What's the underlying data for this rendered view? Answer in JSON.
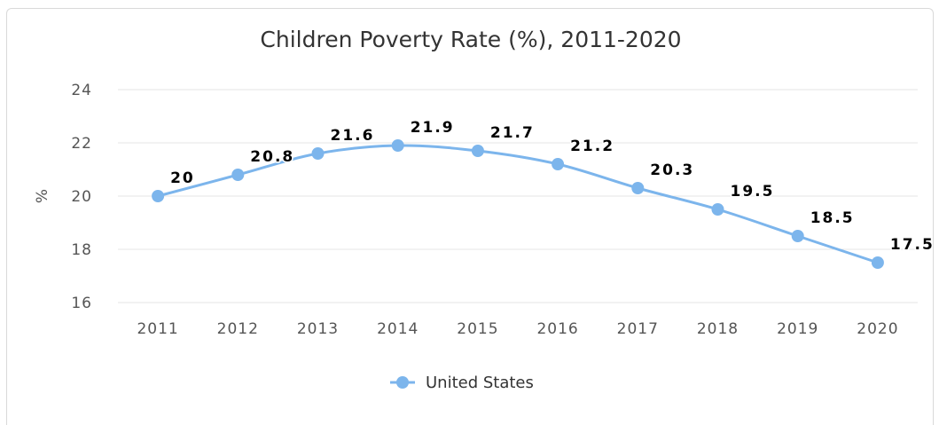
{
  "chart_data": {
    "type": "line",
    "title": "Children Poverty Rate (%), 2011-2020",
    "xlabel": "",
    "ylabel": "%",
    "categories": [
      "2011",
      "2012",
      "2013",
      "2014",
      "2015",
      "2016",
      "2017",
      "2018",
      "2019",
      "2020"
    ],
    "series": [
      {
        "name": "United States",
        "values": [
          20,
          20.8,
          21.6,
          21.9,
          21.7,
          21.2,
          20.3,
          19.5,
          18.5,
          17.5
        ],
        "labels": [
          "20",
          "20.8",
          "21.6",
          "21.9",
          "21.7",
          "21.2",
          "20.3",
          "19.5",
          "18.5",
          "17.5"
        ]
      }
    ],
    "ylim": [
      16,
      24
    ],
    "yticks": [
      "16",
      "18",
      "20",
      "22",
      "24"
    ],
    "grid": true,
    "legend": "bottom-center",
    "colors": {
      "series": "#7cb5ec",
      "grid": "#e6e6e6",
      "border": "#d9d9d9"
    }
  }
}
